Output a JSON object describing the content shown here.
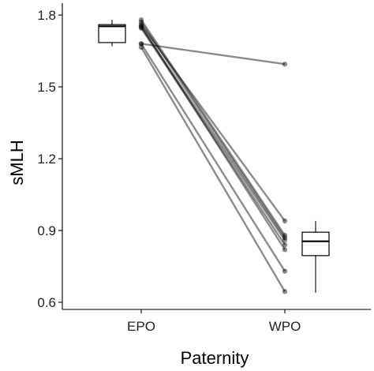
{
  "chart_data": {
    "type": "box-paired",
    "xlabel": "Paternity",
    "ylabel": "sMLH",
    "categories": [
      "EPO",
      "WPO"
    ],
    "ylim": [
      0.6,
      1.82
    ],
    "yticks": [
      0.6,
      0.9,
      1.2,
      1.5,
      1.8
    ],
    "ytick_labels": [
      "0.6",
      "0.9",
      "1.2",
      "1.5",
      "1.8"
    ],
    "grid": false,
    "boxes": [
      {
        "category": "EPO",
        "min": 1.67,
        "q1": 1.685,
        "median": 1.753,
        "q3": 1.76,
        "max": 1.78
      },
      {
        "category": "WPO",
        "min": 0.64,
        "q1": 0.795,
        "median": 0.855,
        "q3": 0.893,
        "max": 0.94
      }
    ],
    "pairs": [
      {
        "EPO": 1.78,
        "WPO": 0.88
      },
      {
        "EPO": 1.77,
        "WPO": 0.87
      },
      {
        "EPO": 1.76,
        "WPO": 0.94
      },
      {
        "EPO": 1.755,
        "WPO": 0.82
      },
      {
        "EPO": 1.75,
        "WPO": 0.86
      },
      {
        "EPO": 1.745,
        "WPO": 0.84
      },
      {
        "EPO": 1.68,
        "WPO": 0.73
      },
      {
        "EPO": 1.665,
        "WPO": 0.645
      },
      {
        "EPO": 1.68,
        "WPO": 1.595
      }
    ]
  }
}
